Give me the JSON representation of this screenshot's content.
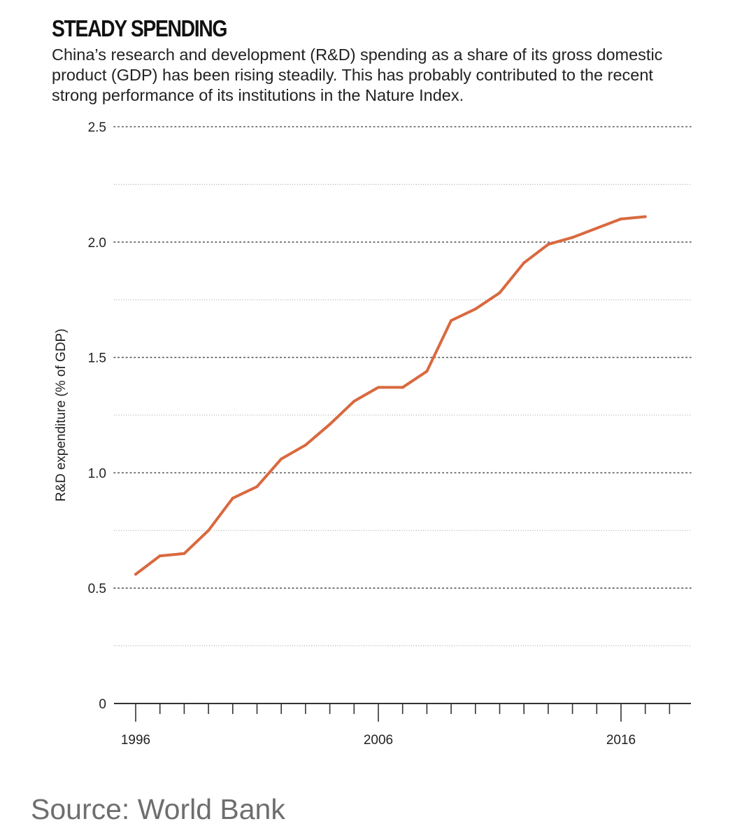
{
  "header": {
    "title": "STEADY SPENDING",
    "subtitle": "China’s research and development (R&D) spending as a share of its gross domestic product (GDP) has been rising steadily. This has probably contributed to the recent strong performance of its institutions in the Nature Index."
  },
  "footer": {
    "source": "Source: World Bank"
  },
  "colors": {
    "line": "#d9693f",
    "grid_major": "#555555",
    "grid_minor": "#9a9a9a",
    "axis": "#333333"
  },
  "chart_data": {
    "type": "line",
    "title": "STEADY SPENDING",
    "xlabel": "",
    "ylabel": "R&D expenditure (% of GDP)",
    "xlim": [
      1996,
      2018
    ],
    "ylim": [
      0,
      2.5
    ],
    "y_ticks": [
      0,
      0.5,
      1.0,
      1.5,
      2.0,
      2.5
    ],
    "y_tick_labels": [
      "0",
      "0.5",
      "1.0",
      "1.5",
      "2.0",
      "2.5"
    ],
    "y_minor_ticks": [
      0.25,
      0.75,
      1.25,
      1.75,
      2.25
    ],
    "x_tick_labels": [
      {
        "x": 1996,
        "label": "1996"
      },
      {
        "x": 2006,
        "label": "2006"
      },
      {
        "x": 2016,
        "label": "2016"
      }
    ],
    "x_minor_ticks": [
      1997,
      1998,
      1999,
      2000,
      2001,
      2002,
      2003,
      2004,
      2005,
      2007,
      2008,
      2009,
      2010,
      2011,
      2012,
      2013,
      2014,
      2015,
      2017,
      2018
    ],
    "grid": true,
    "series": [
      {
        "name": "R&D expenditure (% of GDP)",
        "x": [
          1996,
          1997,
          1998,
          1999,
          2000,
          2001,
          2002,
          2003,
          2004,
          2005,
          2006,
          2007,
          2008,
          2009,
          2010,
          2011,
          2012,
          2013,
          2014,
          2015,
          2016,
          2017
        ],
        "values": [
          0.56,
          0.64,
          0.65,
          0.75,
          0.89,
          0.94,
          1.06,
          1.12,
          1.21,
          1.31,
          1.37,
          1.37,
          1.44,
          1.66,
          1.71,
          1.78,
          1.91,
          1.99,
          2.02,
          2.06,
          2.1,
          2.11
        ]
      }
    ]
  }
}
